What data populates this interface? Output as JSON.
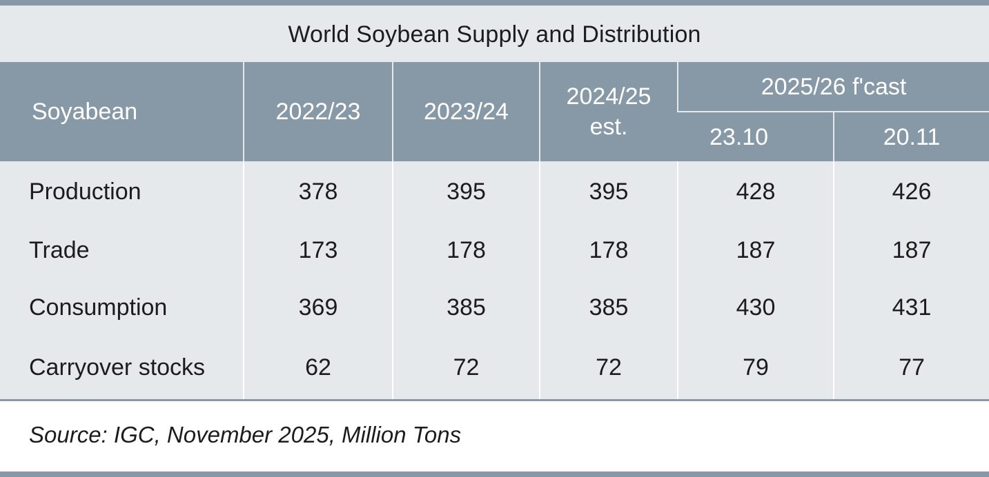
{
  "title": "World Soybean Supply and Distribution",
  "colors": {
    "header_bg": "#8799a6",
    "body_bg": "#e5e9ec",
    "text": "#1c1c1c",
    "header_text": "#ffffff"
  },
  "chart_data": {
    "type": "table",
    "title": "World Soybean Supply and Distribution",
    "row_header_label": "Soyabean",
    "columns": [
      "2022/23",
      "2023/24",
      "2024/25 est.",
      "2025/26 f'cast 23.10",
      "2025/26 f'cast 20.11"
    ],
    "header": {
      "row_header": "Soyabean",
      "col_2022": "2022/23",
      "col_2023": "2023/24",
      "col_2024_line1": "2024/25",
      "col_2024_line2": "est.",
      "group_forecast": "2025/26 f'cast",
      "sub_23_10": "23.10",
      "sub_20_11": "20.11"
    },
    "rows": [
      {
        "label": "Production",
        "values": [
          "378",
          "395",
          "395",
          "428",
          "426"
        ]
      },
      {
        "label": "Trade",
        "values": [
          "173",
          "178",
          "178",
          "187",
          "187"
        ]
      },
      {
        "label": "Consumption",
        "values": [
          "369",
          "385",
          "385",
          "430",
          "431"
        ]
      },
      {
        "label": "Carryover stocks",
        "values": [
          "62",
          "72",
          "72",
          "79",
          "77"
        ]
      }
    ]
  },
  "source": {
    "label": "Source:",
    "text": " IGC, November 2025, Million Tons"
  }
}
